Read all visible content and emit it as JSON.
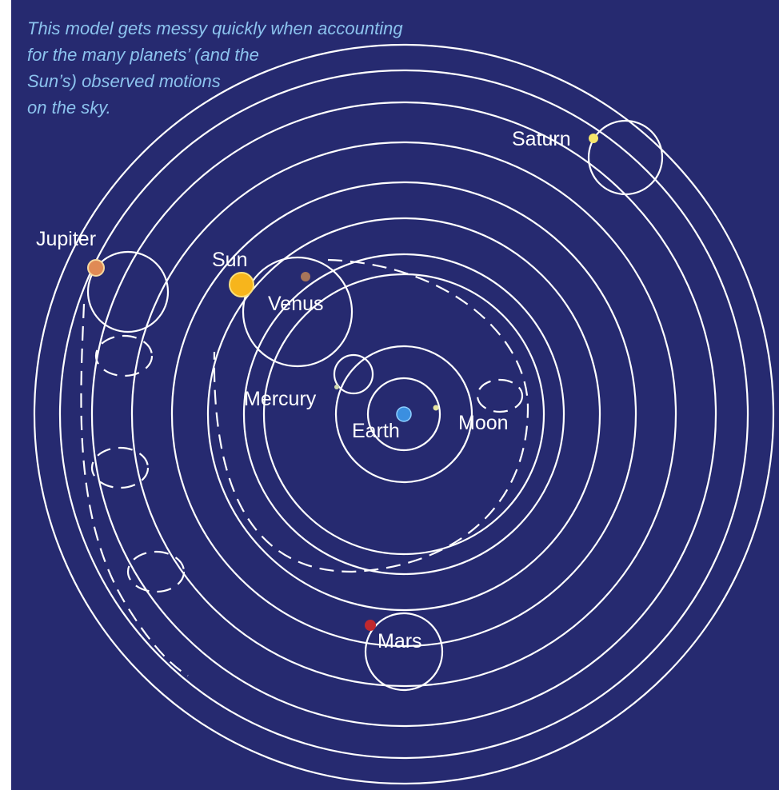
{
  "caption": [
    "This model gets messy quickly when accounting",
    "for the many planets’ (and the",
    "Sun’s) observed motions",
    "on the sky."
  ],
  "labels": {
    "saturn": "Saturn",
    "jupiter": "Jupiter",
    "sun": "Sun",
    "venus": "Venus",
    "mercury": "Mercury",
    "earth": "Earth",
    "moon": "Moon",
    "mars": "Mars"
  }
}
